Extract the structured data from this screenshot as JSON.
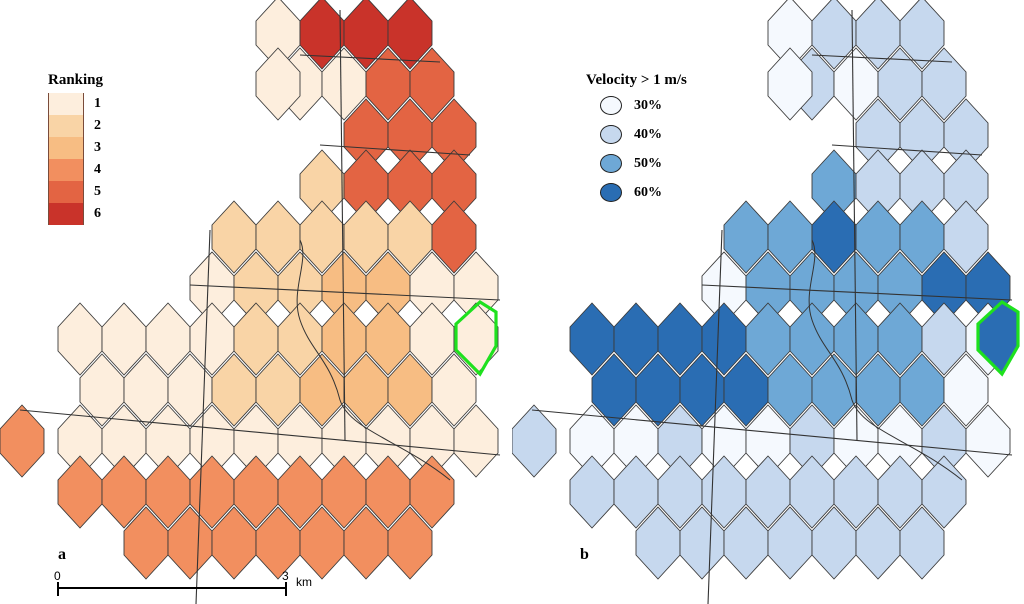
{
  "panel_a": {
    "letter": "a",
    "legend": {
      "title": "Ranking",
      "items": [
        {
          "label": "1",
          "color": "#fdeedd"
        },
        {
          "label": "2",
          "color": "#f9d4a6"
        },
        {
          "label": "3",
          "color": "#f7bd83"
        },
        {
          "label": "4",
          "color": "#f28f5f"
        },
        {
          "label": "5",
          "color": "#e36443"
        },
        {
          "label": "6",
          "color": "#c9332a"
        }
      ]
    },
    "scale_bar": {
      "start_label": "0",
      "end_label": "3",
      "unit": "km"
    }
  },
  "panel_b": {
    "letter": "b",
    "legend": {
      "title": "Velocity > 1 m/s",
      "items": [
        {
          "label": "30%",
          "color": "#f5f9fe"
        },
        {
          "label": "40%",
          "color": "#c6d8ee"
        },
        {
          "label": "50%",
          "color": "#6ea8d6"
        },
        {
          "label": "60%",
          "color": "#2a6db3"
        }
      ]
    }
  },
  "highlight_color": "#1ee11e"
}
